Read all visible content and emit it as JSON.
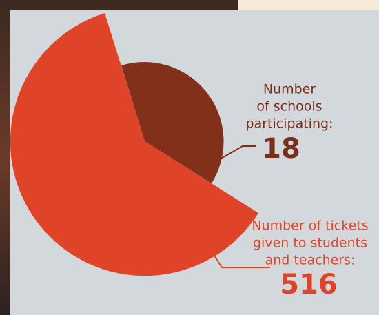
{
  "schools": {
    "label_lines": [
      "Number",
      "of schools",
      "participating:"
    ],
    "value": 18
  },
  "tickets": {
    "label_lines": [
      "Number of tickets",
      "given to students",
      "and teachers:"
    ],
    "value": 516
  }
}
